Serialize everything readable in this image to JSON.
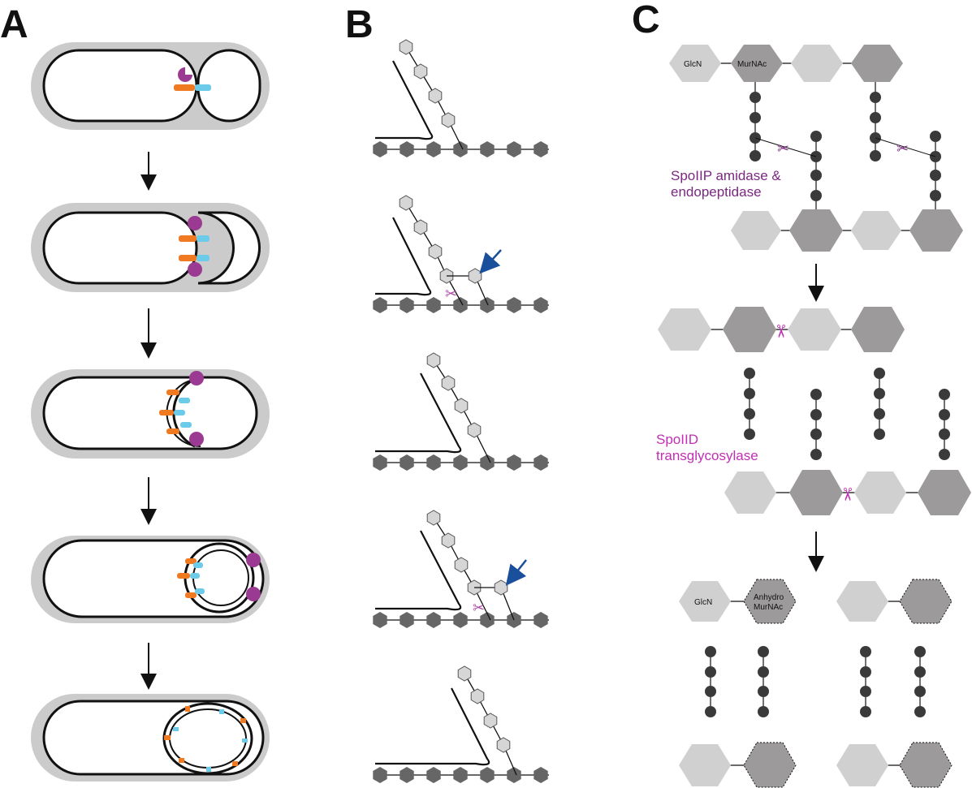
{
  "panels": {
    "a": {
      "letter": "A"
    },
    "b": {
      "letter": "B"
    },
    "c": {
      "letter": "C",
      "glcn_label": "GlcN",
      "murnac_label": "MurNAc",
      "spoiip_line1": "SpoIIP amidase &",
      "spoiip_line2": "endopeptidase",
      "spoiid_line1": "SpoIID",
      "spoiid_line2": "transglycosylase",
      "glcn_label_2": "GlcN",
      "anhydro_line1": "Anhydro",
      "anhydro_line2": "MurNAc"
    }
  },
  "colors": {
    "background": "#ffffff",
    "cell_wall": "#cbcbcb",
    "membrane": "#111111",
    "enzyme_magenta": "#9b3a92",
    "protein_orange": "#f07a22",
    "protein_cyan": "#6bcbe8",
    "glcn_light": "#d0d0d0",
    "murnac_dark": "#9c9a9a",
    "peptide_dot": "#3a3a3a",
    "backbone_hex": "#666666",
    "arrow_blue": "#1a4f9c",
    "spoiip_text": "#7a2880",
    "spoiid_text": "#c22fb3"
  }
}
